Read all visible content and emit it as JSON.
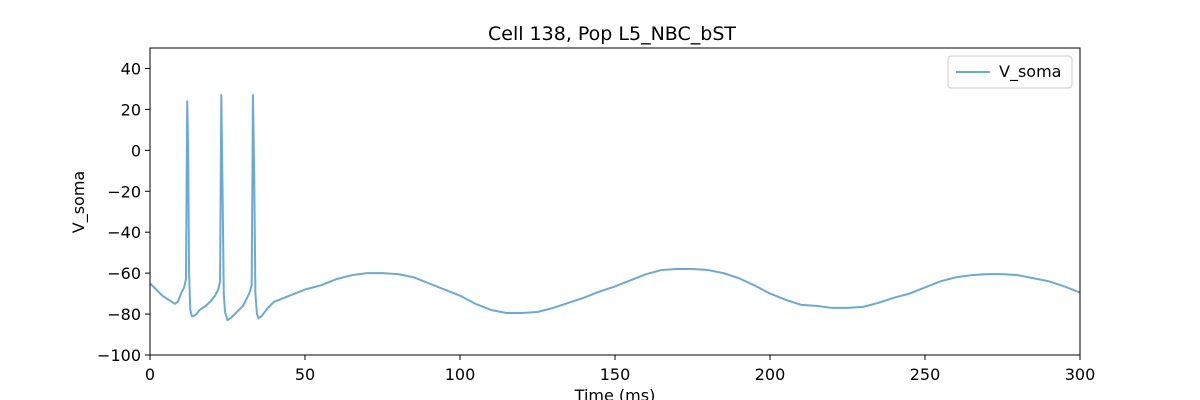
{
  "chart_data": {
    "type": "line",
    "title": "Cell 138, Pop L5_NBC_bST",
    "xlabel": "Time (ms)",
    "ylabel": "V_soma",
    "xlim": [
      0,
      300
    ],
    "ylim": [
      -100,
      50
    ],
    "xticks": [
      0,
      50,
      100,
      150,
      200,
      250,
      300
    ],
    "yticks": [
      -100,
      -80,
      -60,
      -40,
      -20,
      0,
      20,
      40
    ],
    "grid": false,
    "legend_position": "top-right",
    "series": [
      {
        "name": "V_soma",
        "color": "#6aaad6",
        "x": [
          0,
          2,
          4,
          6,
          8,
          9,
          10,
          11,
          11.6,
          12,
          12.3,
          12.6,
          13,
          13.5,
          14,
          15,
          16,
          18,
          20,
          21,
          22,
          22.6,
          23,
          23.4,
          23.8,
          24.2,
          25,
          26,
          28,
          30,
          31,
          32,
          32.8,
          33.2,
          33.6,
          34,
          34.5,
          35,
          36,
          38,
          40,
          45,
          50,
          55,
          60,
          65,
          70,
          75,
          80,
          85,
          90,
          95,
          100,
          105,
          110,
          115,
          120,
          125,
          130,
          135,
          140,
          145,
          150,
          155,
          160,
          165,
          170,
          175,
          180,
          185,
          190,
          195,
          200,
          205,
          210,
          215,
          220,
          225,
          230,
          235,
          240,
          245,
          250,
          255,
          260,
          265,
          270,
          275,
          280,
          285,
          290,
          295,
          300
        ],
        "values": [
          -65,
          -68,
          -71,
          -73,
          -75,
          -74,
          -70,
          -67,
          -63,
          24,
          0,
          -60,
          -78,
          -81,
          -81,
          -80,
          -78,
          -76,
          -73,
          -71,
          -68,
          -64,
          27,
          -20,
          -70,
          -79,
          -83,
          -82,
          -79,
          -76,
          -73,
          -70,
          -66,
          27,
          -10,
          -70,
          -80,
          -82,
          -81,
          -77,
          -74,
          -71,
          -68,
          -66,
          -63,
          -61,
          -60,
          -60,
          -60.5,
          -62,
          -65,
          -68,
          -71,
          -75,
          -78,
          -79.5,
          -79.5,
          -79,
          -77,
          -74.5,
          -72,
          -69,
          -66.5,
          -63.5,
          -60.5,
          -58.5,
          -58,
          -58,
          -58.5,
          -60,
          -62.5,
          -66,
          -70,
          -73,
          -75.5,
          -76,
          -77,
          -77,
          -76.5,
          -74.5,
          -72,
          -70,
          -67,
          -64,
          -62,
          -61,
          -60.5,
          -60.5,
          -61,
          -62.5,
          -64,
          -66.5,
          -69.5
        ]
      }
    ]
  }
}
